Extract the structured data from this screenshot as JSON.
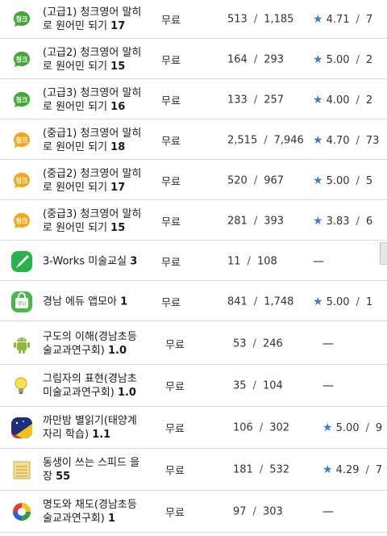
{
  "rows": [
    {
      "title": "(고급1) 청크영어 말히로 원어민 되기",
      "num": "17",
      "price": "무료",
      "installs": "513",
      "total": "1,185",
      "rating": "4.71",
      "reviews": "7",
      "icon": "chunk-green-icon",
      "has_rating": true
    },
    {
      "title": "(고급2) 청크영어 말히로 원어민 되기",
      "num": "15",
      "price": "무료",
      "installs": "164",
      "total": "293",
      "rating": "5.00",
      "reviews": "2",
      "icon": "chunk-green-icon",
      "has_rating": true
    },
    {
      "title": "(고급3) 청크영어 말히로 원어민 되기",
      "num": "16",
      "price": "무료",
      "installs": "133",
      "total": "257",
      "rating": "4.00",
      "reviews": "2",
      "icon": "chunk-green-icon",
      "has_rating": true
    },
    {
      "title": "(중급1) 청크영어 말히로 원어민 되기",
      "num": "18",
      "price": "무료",
      "installs": "2,515",
      "total": "7,946",
      "rating": "4.70",
      "reviews": "73",
      "icon": "chunk-orange-icon",
      "has_rating": true
    },
    {
      "title": "(중급2) 청크영어 말히로 원어민 되기",
      "num": "17",
      "price": "무료",
      "installs": "520",
      "total": "967",
      "rating": "5.00",
      "reviews": "5",
      "icon": "chunk-orange-icon",
      "has_rating": true
    },
    {
      "title": "(중급3) 청크영어 말히로 원어민 되기",
      "num": "15",
      "price": "무료",
      "installs": "281",
      "total": "393",
      "rating": "3.83",
      "reviews": "6",
      "icon": "chunk-orange-icon",
      "has_rating": true
    },
    {
      "title": "3-Works 미술교실",
      "num": "3",
      "price": "무료",
      "installs": "11",
      "total": "108",
      "rating": "—",
      "reviews": "",
      "icon": "brush-icon",
      "has_rating": false
    },
    {
      "title": "경남 에듀 앱모아",
      "num": "1",
      "price": "무료",
      "installs": "841",
      "total": "1,748",
      "rating": "5.00",
      "reviews": "1",
      "icon": "edu-bag-icon",
      "has_rating": true
    },
    {
      "title": "구도의 이해(경남초등미술교과연구회)",
      "num": "1.0",
      "price": "무료",
      "installs": "53",
      "total": "246",
      "rating": "—",
      "reviews": "",
      "icon": "android-icon",
      "has_rating": false
    },
    {
      "title": "그림자의 표현(경남초등미술교과연구회)",
      "num": "1.0",
      "price": "무료",
      "installs": "35",
      "total": "104",
      "rating": "—",
      "reviews": "",
      "icon": "lightbulb-icon",
      "has_rating": false
    },
    {
      "title": "까만밤 별읽기(태양계자리 학습)",
      "num": "1.1",
      "price": "무료",
      "installs": "106",
      "total": "302",
      "rating": "5.00",
      "reviews": "9",
      "icon": "night-sky-icon",
      "has_rating": true
    },
    {
      "title": "동생이 쓰는 스피드 을장",
      "num": "55",
      "price": "무료",
      "installs": "181",
      "total": "532",
      "rating": "4.29",
      "reviews": "7",
      "icon": "notepad-icon",
      "has_rating": true
    },
    {
      "title": "명도와 채도(경남초등미술교과연구회)",
      "num": "1",
      "price": "무료",
      "installs": "97",
      "total": "303",
      "rating": "—",
      "reviews": "",
      "icon": "color-wheel-icon",
      "has_rating": false
    }
  ],
  "colors": {
    "star": "#3b7fd0",
    "divider": "#dcdcdc"
  }
}
